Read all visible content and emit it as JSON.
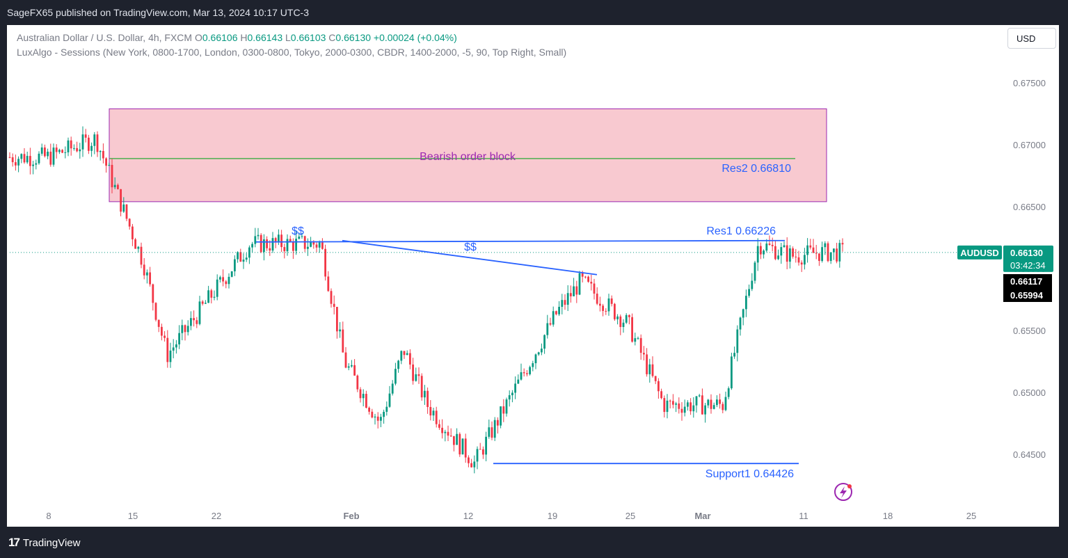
{
  "header": {
    "published": "SageFX65 published on TradingView.com, Mar 13, 2024 10:17 UTC-3"
  },
  "legend": {
    "symbol_line": "Australian Dollar / U.S. Dollar, 4h, FXCM",
    "o_label": "O",
    "o": "0.66106",
    "h_label": "H",
    "h": "0.66143",
    "l_label": "L",
    "l": "0.66103",
    "c_label": "C",
    "c": "0.66130",
    "change": "+0.00024 (+0.04%)",
    "indicator": "LuxAlgo - Sessions (New York, 0800-1700, London, 0300-0800, Tokyo, 2000-0300, CBDR, 1400-2000, -5, 90, Top Right, Small)"
  },
  "currency_button": "USD",
  "footer": {
    "brand": "TradingView",
    "logo_mark": "17"
  },
  "colors": {
    "up": "#089981",
    "down": "#f23645",
    "blue": "#2962ff",
    "zone_fill": "#f8c9d0",
    "zone_border": "#9c27b0",
    "green_line": "#4caf50",
    "purple_text": "#9c27b0"
  },
  "chart_data": {
    "type": "candlestick",
    "symbol": "AUDUSD",
    "timeframe": "4h",
    "ylim": [
      0.6415,
      0.6772
    ],
    "y_ticks": [
      "0.67500",
      "0.67000",
      "0.66500",
      "0.66000",
      "0.65500",
      "0.65000",
      "0.64500"
    ],
    "x_ticks": [
      "8",
      "15",
      "22",
      "Feb",
      "12",
      "19",
      "25",
      "Mar",
      "11",
      "18",
      "25"
    ],
    "last_price": "0.66130",
    "countdown": "03:42:34",
    "price_label_2": "0.66117",
    "price_label_3": "0.65994",
    "key_prices": [
      {
        "date": "Jan 8",
        "price": 0.669
      },
      {
        "date": "Jan 12",
        "price": 0.6705
      },
      {
        "date": "Jan 16",
        "price": 0.6605
      },
      {
        "date": "Jan 18",
        "price": 0.653
      },
      {
        "date": "Jan 25",
        "price": 0.662
      },
      {
        "date": "Jan 31",
        "price": 0.662
      },
      {
        "date": "Feb 2",
        "price": 0.6525
      },
      {
        "date": "Feb 5",
        "price": 0.6475
      },
      {
        "date": "Feb 7",
        "price": 0.6535
      },
      {
        "date": "Feb 9",
        "price": 0.649
      },
      {
        "date": "Feb 13",
        "price": 0.6443
      },
      {
        "date": "Feb 20",
        "price": 0.6565
      },
      {
        "date": "Feb 22",
        "price": 0.659
      },
      {
        "date": "Feb 26",
        "price": 0.6555
      },
      {
        "date": "Feb 29",
        "price": 0.649
      },
      {
        "date": "Mar 5",
        "price": 0.649
      },
      {
        "date": "Mar 8",
        "price": 0.662
      },
      {
        "date": "Mar 11",
        "price": 0.661
      },
      {
        "date": "Mar 13",
        "price": 0.6613
      }
    ],
    "annotations": {
      "order_block": {
        "label": "Bearish order block",
        "top": 0.6729,
        "bottom": 0.6654
      },
      "res2": {
        "label": "Res2 0.66810",
        "price": 0.6681
      },
      "res1": {
        "label": "Res1 0.66226",
        "price": 0.66226
      },
      "support1": {
        "label": "Support1  0.64426",
        "price": 0.64426
      },
      "liquidity_1": "$$",
      "liquidity_2": "$$"
    }
  }
}
